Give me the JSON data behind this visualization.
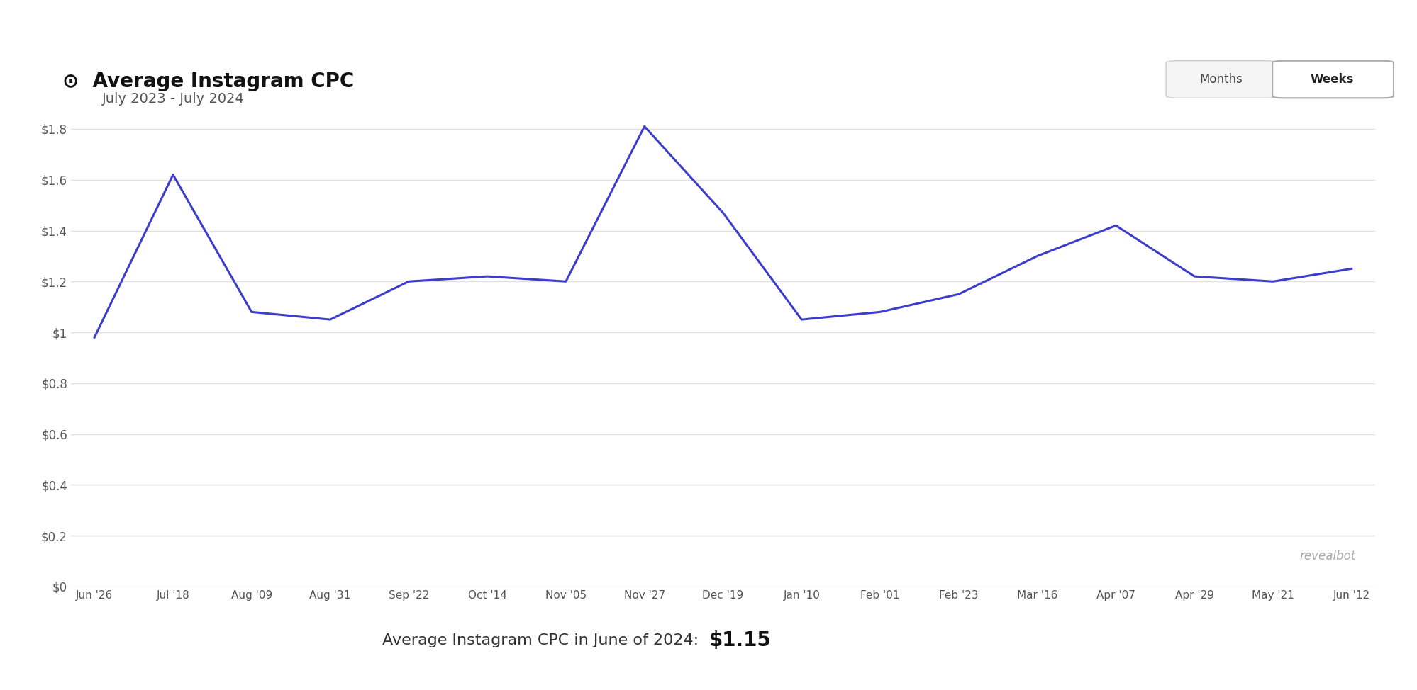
{
  "title": "Average Instagram CPC",
  "subtitle": "July 2023 - July 2024",
  "footer_text": "Average Instagram CPC in June of 2024:",
  "footer_value": "$1.15",
  "watermark": "revealbot",
  "line_color": "#3d3dcc",
  "background_color": "#ffffff",
  "grid_color": "#e0e0e0",
  "ylim": [
    0,
    1.9
  ],
  "yticks": [
    0,
    0.2,
    0.4,
    0.6,
    0.8,
    1.0,
    1.2,
    1.4,
    1.6,
    1.8
  ],
  "ytick_labels": [
    "$0",
    "$0.2",
    "$0.4",
    "$0.6",
    "$0.8",
    "$1",
    "$1.2",
    "$1.4",
    "$1.6",
    "$1.8"
  ],
  "x_labels": [
    "Jun '26",
    "Jul '18",
    "Aug '09",
    "Aug '31",
    "Sep '22",
    "Oct '14",
    "Nov '05",
    "Nov '27",
    "Dec '19",
    "Jan '10",
    "Feb '01",
    "Feb '23",
    "Mar '16",
    "Apr '07",
    "Apr '29",
    "May '21",
    "Jun '12"
  ],
  "y_values": [
    0.98,
    1.62,
    1.08,
    1.05,
    1.2,
    1.22,
    1.2,
    1.81,
    1.47,
    1.05,
    1.08,
    1.15,
    1.3,
    1.42,
    1.22,
    1.2,
    1.25
  ],
  "header_bg": "#4040cc",
  "header_text_color": "#ffffff",
  "months_button_bg": "#ffffff",
  "months_button_text": "#333333",
  "weeks_button_bg": "#ffffff",
  "weeks_button_text": "#333333"
}
